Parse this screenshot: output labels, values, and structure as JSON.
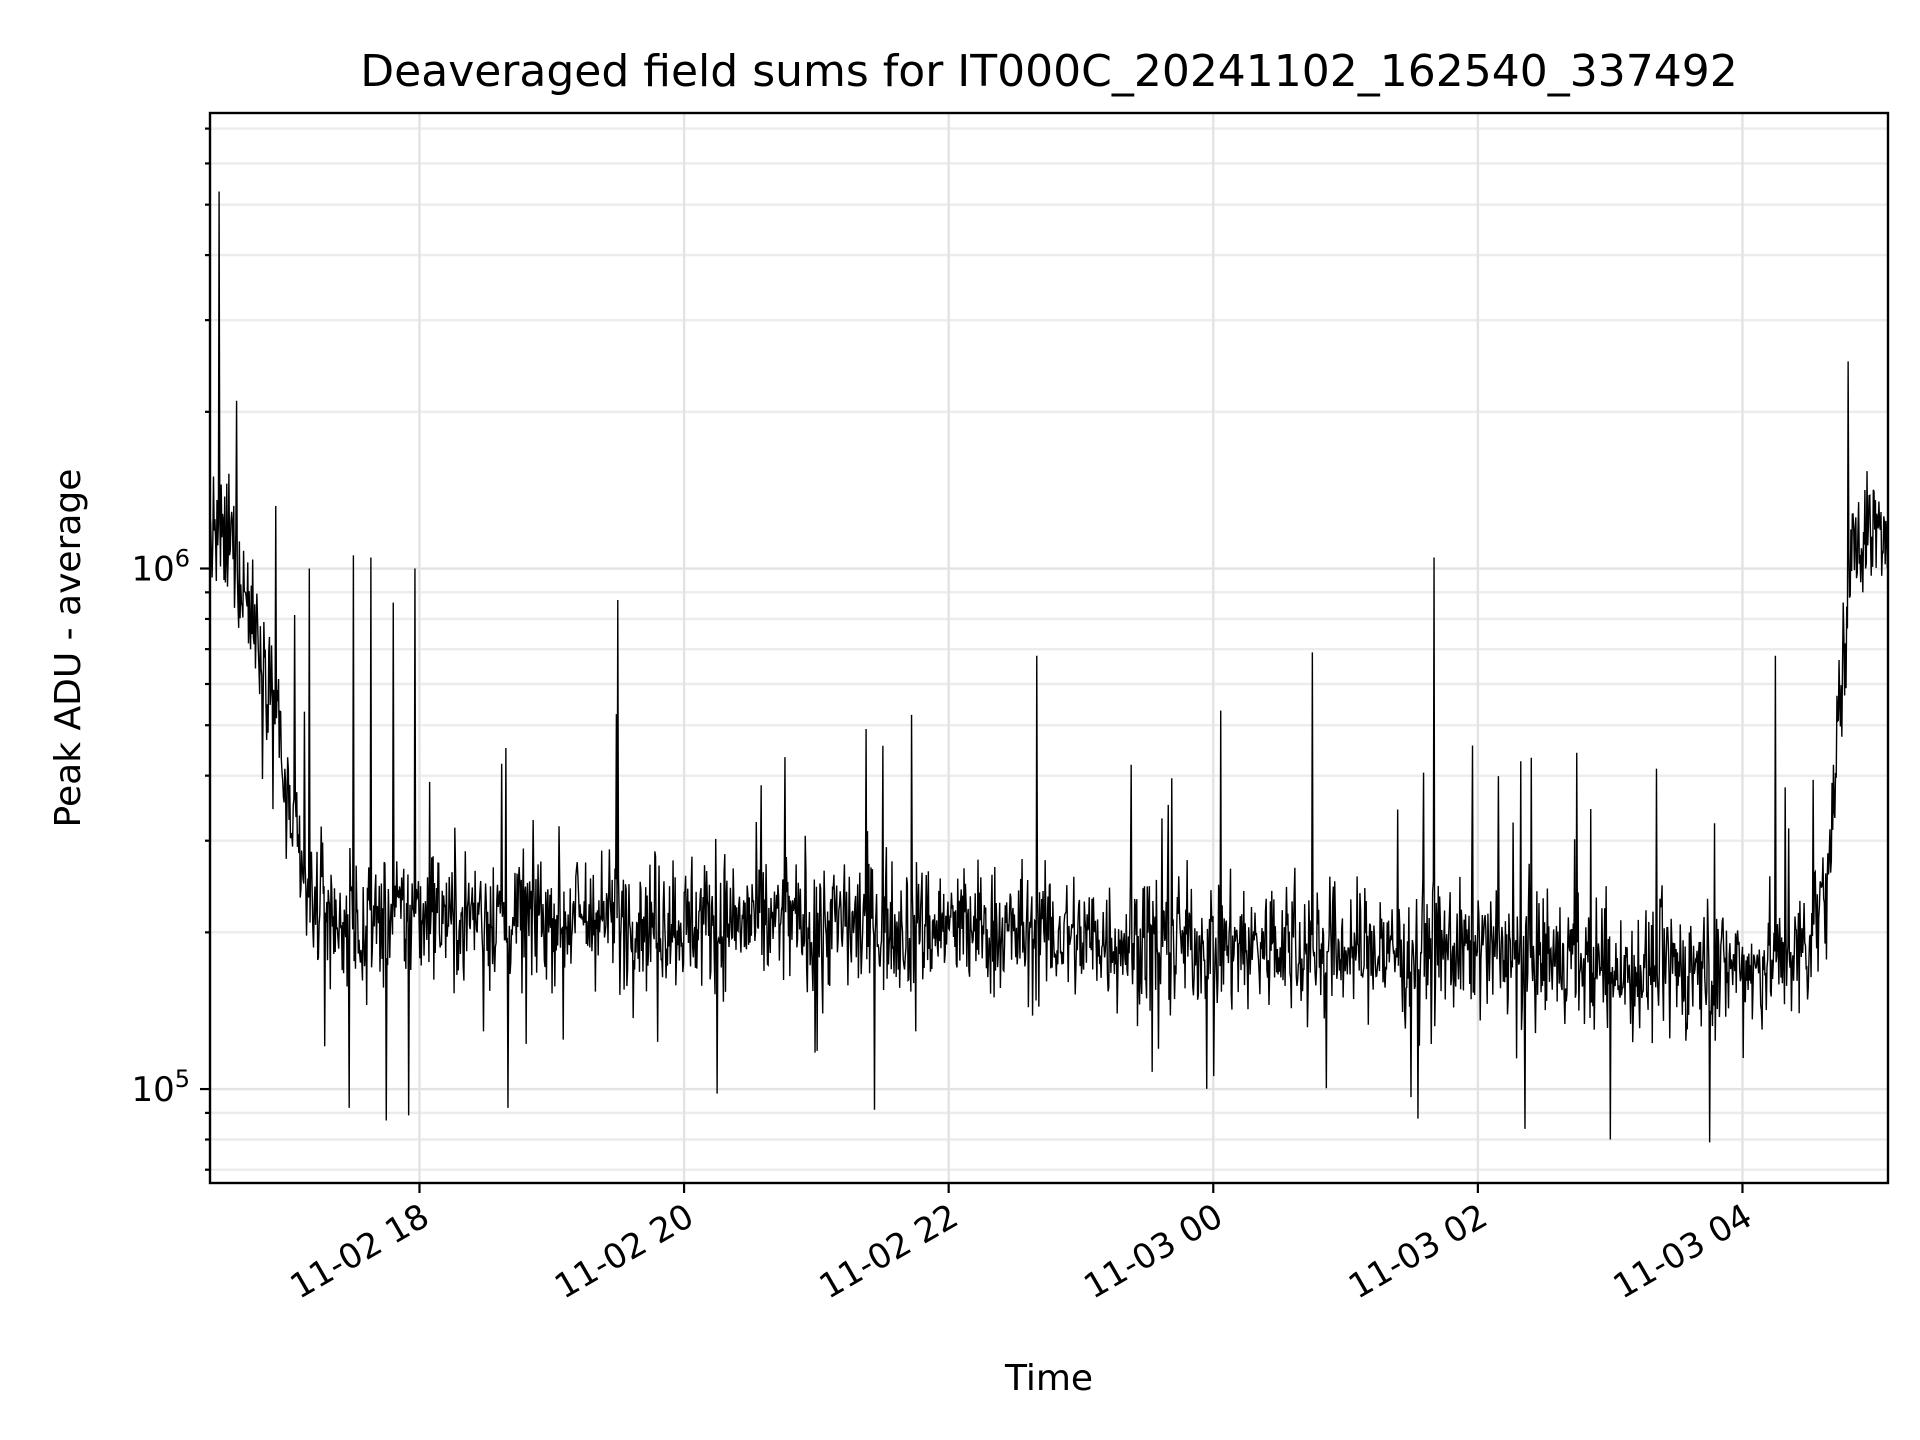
{
  "chart_data": {
    "type": "line",
    "title": "Deaveraged field sums for IT000C_20241102_162540_337492",
    "xlabel": "Time",
    "ylabel": "Peak ADU - average",
    "yscale": "log",
    "xlim": [
      "2024-11-02T16:25",
      "2024-11-03T05:06"
    ],
    "ylim": [
      66000,
      7500000
    ],
    "grid": true,
    "x_ticks": [
      {
        "t": "2024-11-02T18:00",
        "label": "11-02 18"
      },
      {
        "t": "2024-11-02T20:00",
        "label": "11-02 20"
      },
      {
        "t": "2024-11-02T22:00",
        "label": "11-02 22"
      },
      {
        "t": "2024-11-03T00:00",
        "label": "11-03 00"
      },
      {
        "t": "2024-11-03T02:00",
        "label": "11-03 02"
      },
      {
        "t": "2024-11-03T04:00",
        "label": "11-03 04"
      }
    ],
    "y_ticks": [
      {
        "value": 100000,
        "base": "10",
        "exp": "5"
      },
      {
        "value": 1000000,
        "base": "10",
        "exp": "6"
      }
    ],
    "line_color": "#000000",
    "series_trend": {
      "x": [
        "2024-11-02T16:25",
        "2024-11-02T16:35",
        "2024-11-02T16:45",
        "2024-11-02T16:55",
        "2024-11-02T17:00",
        "2024-11-02T17:10",
        "2024-11-02T17:30",
        "2024-11-02T18:00",
        "2024-11-02T19:00",
        "2024-11-02T20:00",
        "2024-11-02T21:00",
        "2024-11-02T22:00",
        "2024-11-02T23:00",
        "2024-11-03T00:00",
        "2024-11-03T01:00",
        "2024-11-03T02:00",
        "2024-11-03T03:00",
        "2024-11-03T04:00",
        "2024-11-03T04:30",
        "2024-11-03T04:40",
        "2024-11-03T04:45",
        "2024-11-03T04:50",
        "2024-11-03T05:06"
      ],
      "y": [
        1150000,
        1100000,
        800000,
        550000,
        350000,
        230000,
        200000,
        220000,
        215000,
        210000,
        210000,
        205000,
        195000,
        190000,
        185000,
        185000,
        170000,
        170000,
        180000,
        300000,
        600000,
        1200000,
        1150000
      ]
    },
    "spikes": [
      {
        "x": "2024-11-02T16:29",
        "y": 5300000
      },
      {
        "x": "2024-11-02T16:37",
        "y": 2100000
      },
      {
        "x": "2024-11-02T17:10",
        "y": 1000000
      },
      {
        "x": "2024-11-02T17:30",
        "y": 1060000
      },
      {
        "x": "2024-11-02T17:38",
        "y": 1050000
      },
      {
        "x": "2024-11-02T17:48",
        "y": 860000
      },
      {
        "x": "2024-11-02T17:58",
        "y": 1000000
      },
      {
        "x": "2024-11-02T19:30",
        "y": 870000
      },
      {
        "x": "2024-11-02T22:40",
        "y": 680000
      },
      {
        "x": "2024-11-03T00:45",
        "y": 690000
      },
      {
        "x": "2024-11-03T01:40",
        "y": 1050000
      },
      {
        "x": "2024-11-03T04:15",
        "y": 680000
      },
      {
        "x": "2024-11-03T04:48",
        "y": 2500000
      }
    ],
    "dips": [
      {
        "x": "2024-11-02T17:28",
        "y": 92000
      },
      {
        "x": "2024-11-02T17:45",
        "y": 87000
      },
      {
        "x": "2024-11-02T17:55",
        "y": 89000
      },
      {
        "x": "2024-11-02T18:40",
        "y": 92000
      },
      {
        "x": "2024-11-02T20:15",
        "y": 98000
      },
      {
        "x": "2024-11-03T03:00",
        "y": 80000
      },
      {
        "x": "2024-11-03T03:45",
        "y": 79000
      }
    ]
  }
}
